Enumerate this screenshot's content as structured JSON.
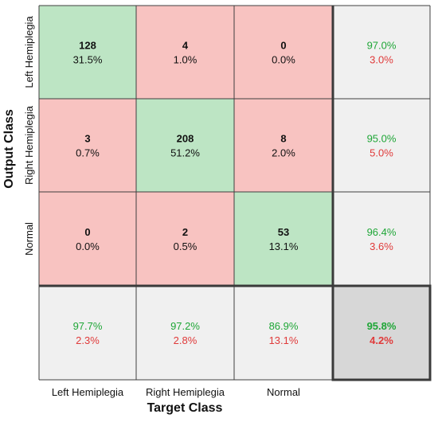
{
  "chart_data": {
    "type": "heatmap",
    "subtype": "confusion-matrix",
    "title": "",
    "xlabel": "Target Class",
    "ylabel": "Output Class",
    "x_categories": [
      "Left Hemiplegia",
      "Right Hemiplegia",
      "Normal"
    ],
    "y_categories": [
      "Left Hemiplegia",
      "Right Hemiplegia",
      "Normal"
    ],
    "cells": [
      [
        {
          "count": "128",
          "percent": "31.5%"
        },
        {
          "count": "4",
          "percent": "1.0%"
        },
        {
          "count": "0",
          "percent": "0.0%"
        }
      ],
      [
        {
          "count": "3",
          "percent": "0.7%"
        },
        {
          "count": "208",
          "percent": "51.2%"
        },
        {
          "count": "8",
          "percent": "2.0%"
        }
      ],
      [
        {
          "count": "0",
          "percent": "0.0%"
        },
        {
          "count": "2",
          "percent": "0.5%"
        },
        {
          "count": "53",
          "percent": "13.1%"
        }
      ]
    ],
    "row_summary": [
      {
        "correct": "97.0%",
        "incorrect": "3.0%"
      },
      {
        "correct": "95.0%",
        "incorrect": "5.0%"
      },
      {
        "correct": "96.4%",
        "incorrect": "3.6%"
      }
    ],
    "col_summary": [
      {
        "correct": "97.7%",
        "incorrect": "2.3%"
      },
      {
        "correct": "97.2%",
        "incorrect": "2.8%"
      },
      {
        "correct": "86.9%",
        "incorrect": "13.1%"
      }
    ],
    "overall": {
      "correct": "95.8%",
      "incorrect": "4.2%"
    },
    "colors": {
      "diagonal_cell": "#bde5c4",
      "off_diagonal_cell": "#f8c3c1",
      "summary_cell": "#f0f0f0",
      "overall_cell": "#d7d7d7",
      "correct_text": "#1fa637",
      "incorrect_text": "#e03a3a",
      "grid_line": "#3f3f3f",
      "thick_line": "#3a3a3a"
    }
  }
}
